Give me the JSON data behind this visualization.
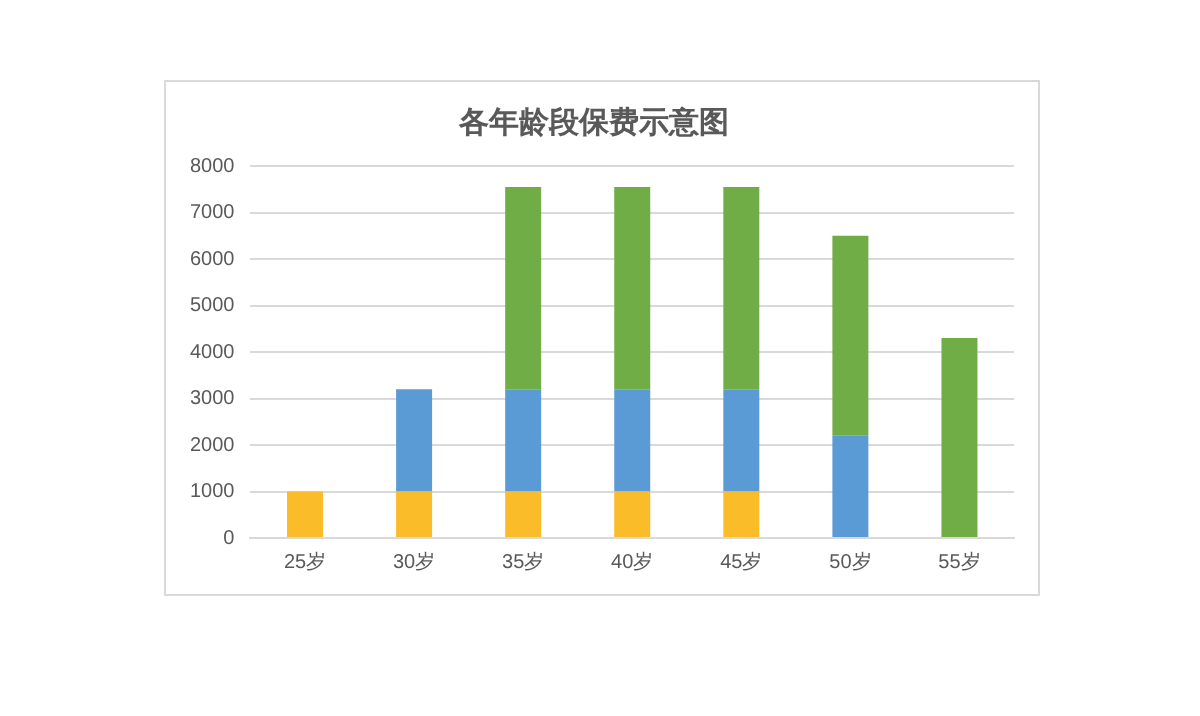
{
  "chart_data": {
    "type": "bar",
    "title": "各年龄段保费示意图",
    "stacked": true,
    "categories": [
      "25岁",
      "30岁",
      "35岁",
      "40岁",
      "45岁",
      "50岁",
      "55岁"
    ],
    "series": [
      {
        "color": "#fbbc2a",
        "values": [
          1000,
          1000,
          1000,
          1000,
          1000,
          null,
          null
        ]
      },
      {
        "color": "#5b9bd5",
        "values": [
          null,
          2200,
          2200,
          2200,
          2200,
          2200,
          null
        ]
      },
      {
        "color": "#70ad47",
        "values": [
          null,
          null,
          4350,
          4350,
          4350,
          4300,
          4300
        ]
      }
    ],
    "ylim": [
      0,
      8000
    ],
    "yticks": [
      0,
      1000,
      2000,
      3000,
      4000,
      5000,
      6000,
      7000,
      8000
    ],
    "grid": "y"
  }
}
